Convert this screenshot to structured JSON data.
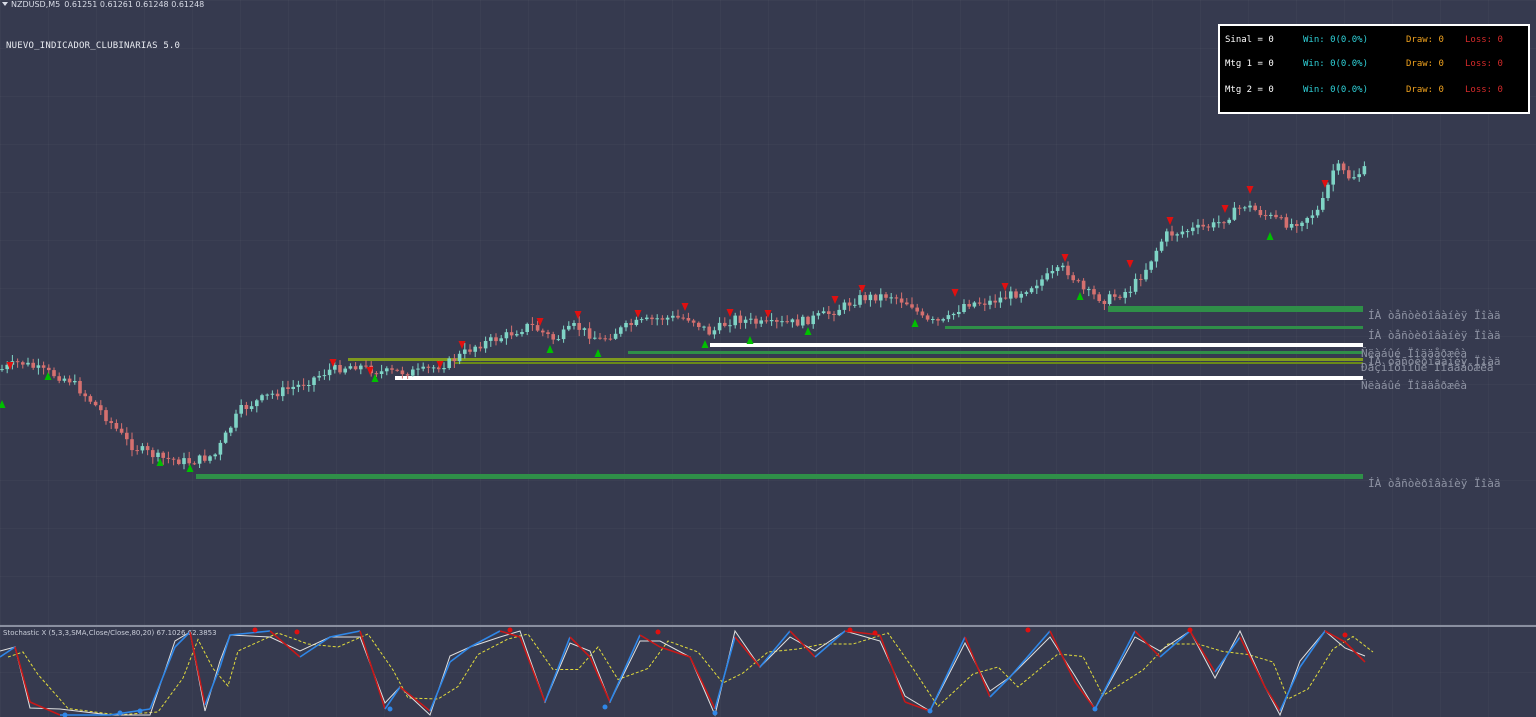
{
  "chart": {
    "symbol_timeframe": "NZDUSD,M5",
    "ohlc": [
      "0.61251",
      "0.61261",
      "0.61248",
      "0.61248"
    ]
  },
  "indicator_title": "NUEVO_INDICADOR_CLUBINARIAS 5.0",
  "stats_panel": {
    "rows": [
      {
        "label": "Sinal = 0",
        "win": "Win: 0(0.0%)",
        "draw": "Draw: 0",
        "loss": "Loss: 0"
      },
      {
        "label": "Mtg 1 = 0",
        "win": "Win: 0(0.0%)",
        "draw": "Draw: 0",
        "loss": "Loss: 0"
      },
      {
        "label": "Mtg 2 = 0",
        "win": "Win: 0(0.0%)",
        "draw": "Draw: 0",
        "loss": "Loss: 0"
      }
    ]
  },
  "level_labels": {
    "support_upper": "ÍÀ òåñòèðîâàíèÿ Ïîàä",
    "support_mid": "ÍÀ òåñòèðîâàíèÿ Ïîàä",
    "weak_1": "Ñëàáûé Ïîääåðæêà",
    "support_overlap": "ÍÀ òåñòèðîâàíèÿ Ïîàä",
    "confirmed": "Ðàçìîòîíûé Ïîääåðæêà",
    "weak_2": "Ñëàáûé Ïîääåðæêà",
    "support_low": "ÍÀ òåñòèðîâàíèÿ Ïîàä"
  },
  "stochastic": {
    "label": "Stochastic X (5,3,3,SMA,Close/Close,80,20) 67.1026 62.3853"
  },
  "colors": {
    "background": "#363a4f",
    "bull_candle": "#7fd4c6",
    "bear_candle": "#d5706f",
    "level_green": "#2f8f48",
    "level_olive": "#7f9a1e",
    "level_white": "#ffffff",
    "buy_signal": "#00c000",
    "sell_signal": "#e01010",
    "stoch_main_up": "#2f87e8",
    "stoch_main_down": "#c81818",
    "stoch_signal": "#e2dc3c",
    "stoch_raw": "#e0e0e0"
  },
  "icons": {
    "buy_arrow": "up-arrow-icon",
    "sell_arrow": "down-arrow-icon",
    "header_menu": "dropdown-triangle-icon"
  }
}
